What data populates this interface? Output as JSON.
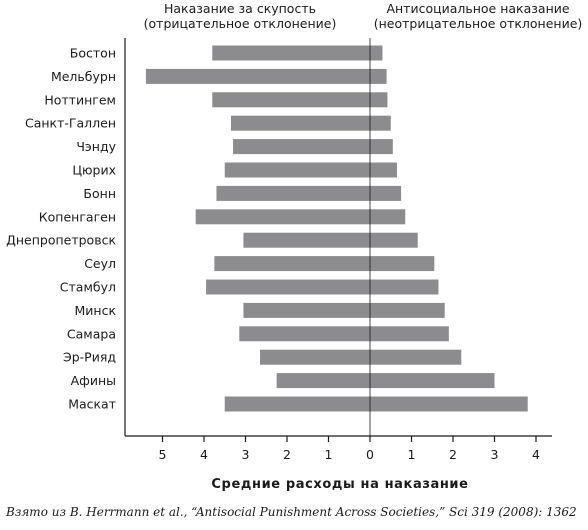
{
  "chart_data": {
    "type": "bar",
    "orientation": "horizontal",
    "header_left": [
      "Наказание за скупость",
      "(отрицательное отклонение)"
    ],
    "header_right": [
      "Антисоциальное наказание",
      "(неотрицательное отклонение)"
    ],
    "xlabel": "Средние расходы на наказание",
    "x_ticks_left": [
      "5",
      "4",
      "3",
      "2",
      "1"
    ],
    "x_ticks_right": [
      "0",
      "1",
      "2",
      "3",
      "4"
    ],
    "categories": [
      "Бостон",
      "Мельбурн",
      "Ноттингем",
      "Санкт-Галлен",
      "Чэнду",
      "Цюрих",
      "Бонн",
      "Копенгаген",
      "Днепропетровск",
      "Сеул",
      "Стамбул",
      "Минск",
      "Самара",
      "Эр-Рияд",
      "Афины",
      "Маскат"
    ],
    "series": [
      {
        "values": [
          3.8,
          5.4,
          3.8,
          3.35,
          3.3,
          3.5,
          3.7,
          4.2,
          3.05,
          3.75,
          3.95,
          3.05,
          3.15,
          2.65,
          2.25,
          3.5
        ]
      },
      {
        "values": [
          0.3,
          0.4,
          0.42,
          0.5,
          0.55,
          0.65,
          0.75,
          0.85,
          1.15,
          1.55,
          1.65,
          1.8,
          1.9,
          2.2,
          3.0,
          3.8
        ]
      }
    ],
    "colors": {
      "bar": "#8c8c8e",
      "axis": "#1a1a1a"
    },
    "xlim_left": [
      0,
      5.8
    ],
    "xlim_right": [
      0,
      4.4
    ]
  },
  "caption": "Взято из B. Herrmann et al., “Antisocial Punishment Across Societies,” Sci 319 (2008): 1362"
}
